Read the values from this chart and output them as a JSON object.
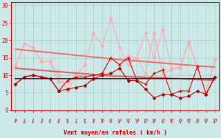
{
  "x": [
    0,
    1,
    2,
    3,
    4,
    5,
    6,
    7,
    8,
    9,
    10,
    11,
    12,
    13,
    14,
    15,
    16,
    17,
    18,
    19,
    20,
    21,
    22,
    23
  ],
  "series": [
    {
      "label": "light_pink_upper",
      "color": "#ffaaaa",
      "lw": 0.8,
      "marker": "D",
      "markersize": 2.0,
      "zorder": 2,
      "y": [
        12.5,
        19,
        18,
        14,
        14,
        8,
        8,
        10,
        13,
        22,
        18.5,
        26.5,
        18,
        13,
        15,
        22,
        15,
        23,
        12,
        12,
        19.5,
        12,
        5,
        14.5
      ]
    },
    {
      "label": "light_pink_lower",
      "color": "#ffaaaa",
      "lw": 0.8,
      "marker": "D",
      "markersize": 2.0,
      "zorder": 2,
      "y": [
        12.5,
        19,
        18,
        14,
        14,
        10,
        5.5,
        10,
        9.5,
        10,
        10.5,
        15,
        13,
        15.5,
        15,
        10.5,
        22,
        10.5,
        11.5,
        12.5,
        19.5,
        12,
        5,
        14.5
      ]
    },
    {
      "label": "trend_upper",
      "color": "#f07070",
      "lw": 1.5,
      "marker": "None",
      "markersize": 0,
      "zorder": 3,
      "y": [
        17.5,
        17.2,
        17.0,
        16.7,
        16.5,
        16.2,
        16.0,
        15.7,
        15.5,
        15.2,
        15.0,
        14.7,
        14.5,
        14.3,
        14.1,
        13.9,
        13.7,
        13.5,
        13.3,
        13.1,
        12.9,
        12.7,
        12.5,
        12.3
      ]
    },
    {
      "label": "trend_lower",
      "color": "#e06060",
      "lw": 1.5,
      "marker": "None",
      "markersize": 0,
      "zorder": 3,
      "y": [
        12.0,
        11.8,
        11.6,
        11.4,
        11.2,
        11.0,
        10.8,
        10.6,
        10.4,
        10.2,
        10.0,
        9.8,
        9.7,
        9.6,
        9.5,
        9.4,
        9.3,
        9.2,
        9.1,
        9.0,
        8.9,
        8.8,
        8.7,
        8.6
      ]
    },
    {
      "label": "dark_red_markers",
      "color": "#dd0000",
      "lw": 0.8,
      "marker": "+",
      "markersize": 3.5,
      "zorder": 4,
      "y": [
        7.5,
        9.5,
        10,
        9.5,
        9,
        5.5,
        8.5,
        9.5,
        9.5,
        10,
        10.5,
        15,
        13,
        15,
        8.5,
        7.5,
        10.5,
        11.5,
        4.5,
        5.5,
        5.5,
        12.5,
        4.5,
        9.5
      ]
    },
    {
      "label": "dark_red_diamonds",
      "color": "#aa0000",
      "lw": 0.8,
      "marker": "D",
      "markersize": 2.0,
      "zorder": 4,
      "y": [
        7.5,
        9.5,
        10,
        9.5,
        9,
        5.5,
        6,
        6.5,
        7,
        9,
        10,
        10.5,
        12,
        8.5,
        8.5,
        6,
        3.5,
        4.5,
        4.5,
        3.5,
        4,
        5.5,
        4.5,
        9.5
      ]
    },
    {
      "label": "dark_horizontal",
      "color": "#330000",
      "lw": 1.2,
      "marker": "None",
      "markersize": 0,
      "zorder": 5,
      "y": [
        9.0,
        9.0,
        9.0,
        9.0,
        9.0,
        9.0,
        9.0,
        9.0,
        9.0,
        9.0,
        9.0,
        9.0,
        9.0,
        9.0,
        9.0,
        9.0,
        9.0,
        9.0,
        9.0,
        9.0,
        9.0,
        9.0,
        9.0,
        9.0
      ]
    }
  ],
  "xlabel": "Vent moyen/en rafales ( km/h )",
  "ylim": [
    0,
    31
  ],
  "yticks": [
    0,
    5,
    10,
    15,
    20,
    25,
    30
  ],
  "xticks": [
    0,
    1,
    2,
    3,
    4,
    5,
    6,
    7,
    8,
    9,
    10,
    11,
    12,
    13,
    14,
    15,
    16,
    17,
    18,
    19,
    20,
    21,
    22,
    23
  ],
  "bg_color": "#cce8e8",
  "grid_color": "#aacccc",
  "tick_color": "#cc0000",
  "label_color": "#cc0000",
  "arrow_color": "#cc0000",
  "arrow_rotations": [
    30,
    45,
    50,
    55,
    60,
    50,
    45,
    55,
    60,
    50,
    45,
    55,
    50,
    45,
    55,
    60,
    50,
    45,
    55,
    60,
    50,
    45,
    55,
    50
  ]
}
